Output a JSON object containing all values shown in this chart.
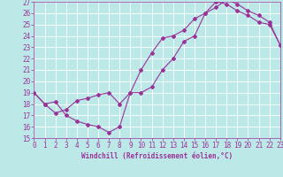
{
  "xlabel": "Windchill (Refroidissement éolien,°C)",
  "bg_color": "#bde8e8",
  "grid_color": "#ffffff",
  "line_color": "#993399",
  "xlim": [
    0,
    23
  ],
  "ylim": [
    15,
    27
  ],
  "xticks": [
    0,
    1,
    2,
    3,
    4,
    5,
    6,
    7,
    8,
    9,
    10,
    11,
    12,
    13,
    14,
    15,
    16,
    17,
    18,
    19,
    20,
    21,
    22,
    23
  ],
  "yticks": [
    15,
    16,
    17,
    18,
    19,
    20,
    21,
    22,
    23,
    24,
    25,
    26,
    27
  ],
  "curve1_x": [
    0,
    1,
    2,
    3,
    4,
    5,
    6,
    7,
    8,
    9,
    10,
    11,
    12,
    13,
    14,
    15,
    16,
    17,
    18,
    19,
    20,
    21,
    22,
    23
  ],
  "curve1_y": [
    19,
    18,
    18.2,
    17,
    16.5,
    16.2,
    16.0,
    15.5,
    16.0,
    19.0,
    19.0,
    19.5,
    21.0,
    22.0,
    23.5,
    24.0,
    26.0,
    26.5,
    27.2,
    26.8,
    26.2,
    25.8,
    25.2,
    23.2
  ],
  "curve2_x": [
    0,
    1,
    2,
    3,
    4,
    5,
    6,
    7,
    8,
    9,
    10,
    11,
    12,
    13,
    14,
    15,
    16,
    17,
    18,
    19,
    20,
    21,
    22,
    23
  ],
  "curve2_y": [
    19,
    18,
    17.2,
    17.5,
    18.3,
    18.5,
    18.8,
    19.0,
    18.0,
    19.0,
    21.0,
    22.5,
    23.8,
    24.0,
    24.5,
    25.5,
    26.0,
    27.0,
    26.8,
    26.2,
    25.8,
    25.2,
    25.0,
    23.2
  ],
  "tick_fontsize": 5.5,
  "label_fontsize": 5.5,
  "marker_size": 2.0,
  "linewidth": 0.8
}
